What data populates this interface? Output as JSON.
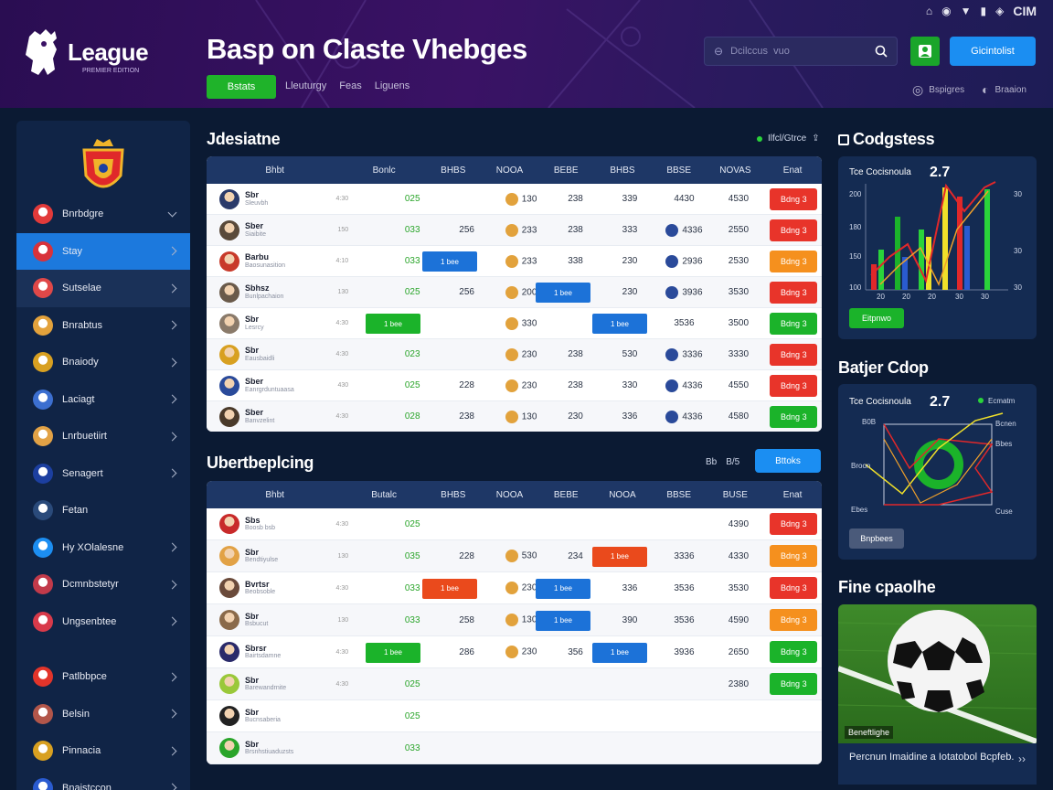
{
  "header": {
    "logo_text": "League",
    "logo_sub": "PREMIER EDITION",
    "title": "Basp on Claste Vhebges",
    "cta_label": "Bstats",
    "links": [
      "Lleuturgy",
      "Feas",
      "Liguens"
    ],
    "status_title": "CIM",
    "search_placeholder": "Dcilccus  vuo",
    "signup_label": "Gicintolist",
    "tool_1": "Bspigres",
    "tool_2": "Braaion"
  },
  "sidebar": {
    "items": [
      {
        "label": "Bnrbdgre",
        "icon_color": "#e23a3a",
        "chev": "down",
        "state": ""
      },
      {
        "label": "Stay",
        "icon_color": "#d8323a",
        "chev": "right",
        "state": "active"
      },
      {
        "label": "Sutselae",
        "icon_color": "#e04848",
        "chev": "right",
        "state": "alt"
      },
      {
        "label": "Bnrabtus",
        "icon_color": "#e3a23c",
        "chev": "right",
        "state": ""
      },
      {
        "label": "Bnaiody",
        "icon_color": "#d8a021",
        "chev": "right",
        "state": ""
      },
      {
        "label": "Laciagt",
        "icon_color": "#3c6fd0",
        "chev": "right",
        "state": ""
      },
      {
        "label": "Lnrbuetiirt",
        "icon_color": "#e2a246",
        "chev": "right",
        "state": ""
      },
      {
        "label": "Senagert",
        "icon_color": "#1c3fa0",
        "chev": "right",
        "state": ""
      },
      {
        "label": "Fetan",
        "icon_color": "#2a4a7a",
        "chev": "",
        "state": ""
      },
      {
        "label": "Hy XOlalesne",
        "icon_color": "#1c8ef2",
        "chev": "right",
        "state": ""
      },
      {
        "label": "Dcmnbstetyr",
        "icon_color": "#c23a4a",
        "chev": "right",
        "state": ""
      },
      {
        "label": "Ungsenbtee",
        "icon_color": "#d83a4a",
        "chev": "right",
        "state": ""
      },
      {
        "label": "Patlbbpce",
        "icon_color": "#e2342a",
        "chev": "right",
        "state": ""
      },
      {
        "label": "Belsin",
        "icon_color": "#b2564a",
        "chev": "right",
        "state": ""
      },
      {
        "label": "Pinnacia",
        "icon_color": "#d8a021",
        "chev": "right",
        "state": ""
      },
      {
        "label": "Bnaistccon",
        "icon_color": "#2a5bd0",
        "chev": "right",
        "state": ""
      }
    ]
  },
  "live_table": {
    "title": "Jdesiatne",
    "live_label": "Ilfcl/Gtrce",
    "headers": [
      "Bhbt",
      "Bonlc",
      "BHBS",
      "NOOA",
      "BEBE",
      "BHBS",
      "BBSE",
      "NOVAS",
      "Enat"
    ],
    "rows": [
      {
        "name": "Sbr",
        "sub": "Sleuvbh",
        "time": "4:30",
        "av": "#2a3a6a",
        "v": [
          "025",
          "",
          "130",
          "238",
          "339",
          "4430",
          "4530"
        ],
        "icons": [
          2
        ],
        "act": "Bdng 3",
        "act_color": "red"
      },
      {
        "name": "Sber",
        "sub": "Siaibite",
        "time": "150",
        "av": "#5a4a3a",
        "v": [
          "033",
          "256",
          "233",
          "238",
          "333",
          "4336",
          "2550"
        ],
        "icons": [
          2,
          5
        ],
        "act": "Bdng 3",
        "act_color": "red"
      },
      {
        "name": "Barbu",
        "sub": "Baosunasition",
        "time": "4:10",
        "av": "#c83a2a",
        "v": [
          "033",
          "",
          "233",
          "338",
          "230",
          "2936",
          "2530"
        ],
        "icons": [
          2,
          5
        ],
        "act": "Bdng 3",
        "act_color": "orange"
      },
      {
        "name": "Sbhsz",
        "sub": "Bunlpachaion",
        "time": "130",
        "av": "#6a5a4a",
        "v": [
          "025",
          "256",
          "200",
          "",
          "230",
          "3936",
          "3530"
        ],
        "icons": [
          2,
          5
        ],
        "act": "Bdng 3",
        "act_color": "red"
      },
      {
        "name": "Sbr",
        "sub": "Lesrcy",
        "time": "4:30",
        "av": "#8a7a6a",
        "v": [
          "",
          "",
          "330",
          "",
          "",
          "3536",
          "3500"
        ],
        "icons": [
          2
        ],
        "act": "Bdng 3",
        "act_color": "green"
      },
      {
        "name": "Sbr",
        "sub": "Eausbaidli",
        "time": "4:30",
        "av": "#d8a021",
        "v": [
          "023",
          "",
          "230",
          "238",
          "530",
          "3336",
          "3330"
        ],
        "icons": [
          2,
          5
        ],
        "act": "Bdng 3",
        "act_color": "red"
      },
      {
        "name": "Sber",
        "sub": "Eanrgrduntuaasa",
        "time": "430",
        "av": "#2a4a9a",
        "v": [
          "025",
          "228",
          "230",
          "238",
          "330",
          "4336",
          "4550"
        ],
        "icons": [
          2,
          5
        ],
        "act": "Bdng 3",
        "act_color": "red"
      },
      {
        "name": "Sber",
        "sub": "Banvzelint",
        "time": "4:30",
        "av": "#4a3a2a",
        "v": [
          "028",
          "238",
          "130",
          "230",
          "336",
          "4336",
          "4580"
        ],
        "icons": [
          2,
          5
        ],
        "act": "Bdng 3",
        "act_color": "green"
      }
    ],
    "pills": [
      {
        "label": "1 bee",
        "color": "blue",
        "row": 2,
        "col": 1
      },
      {
        "label": "1 bee",
        "color": "blue",
        "row": 3,
        "col": 3
      },
      {
        "label": "1 bee",
        "color": "green",
        "row": 4,
        "col": 0
      },
      {
        "label": "1 bee",
        "color": "blue",
        "row": 4,
        "col": 4
      }
    ]
  },
  "upcoming_table": {
    "title": "Ubertbeplcing",
    "filter_1": "Bb",
    "filter_2": "B/5",
    "signin_label": "Bttoks",
    "headers": [
      "Bhbt",
      "Butalc",
      "BHBS",
      "NOOA",
      "BEBE",
      "NOOA",
      "BBSE",
      "BUSE",
      "Enat"
    ],
    "rows": [
      {
        "name": "Sbs",
        "sub": "Boosb bsb",
        "time": "4:30",
        "av": "#c82a2a",
        "v": [
          "025",
          "",
          "",
          "",
          "",
          "",
          "4390"
        ],
        "icons": [],
        "act": "Bdng 3",
        "act_color": "red"
      },
      {
        "name": "Sbr",
        "sub": "Bendtiyulse",
        "time": "130",
        "av": "#e2a246",
        "v": [
          "035",
          "228",
          "530",
          "234",
          "",
          "3336",
          "4330"
        ],
        "icons": [
          2
        ],
        "act": "Bdng 3",
        "act_color": "orange"
      },
      {
        "name": "Bvrtsr",
        "sub": "Beobsoble",
        "time": "4:30",
        "av": "#6a4a3a",
        "v": [
          "033",
          "",
          "230",
          "",
          "336",
          "3536",
          "3530"
        ],
        "icons": [
          2
        ],
        "act": "Bdng 3",
        "act_color": "red"
      },
      {
        "name": "Sbr",
        "sub": "Bsbucut",
        "time": "130",
        "av": "#8a6a4a",
        "v": [
          "033",
          "258",
          "130",
          "",
          "390",
          "3536",
          "4590"
        ],
        "icons": [
          2
        ],
        "act": "Bdng 3",
        "act_color": "orange"
      },
      {
        "name": "Sbrsr",
        "sub": "Bairtsdamne",
        "time": "4:30",
        "av": "#2a2a6a",
        "v": [
          "",
          "286",
          "230",
          "356",
          "",
          "3936",
          "2650"
        ],
        "icons": [
          2
        ],
        "act": "Bdng 3",
        "act_color": "green"
      },
      {
        "name": "Sbr",
        "sub": "Barewandrnite",
        "time": "4:30",
        "av": "#9ac83a",
        "v": [
          "025",
          "",
          "",
          "",
          "",
          "",
          "2380"
        ],
        "icons": [],
        "act": "Bdng 3",
        "act_color": "green"
      },
      {
        "name": "Sbr",
        "sub": "Bucnsaberia",
        "time": "",
        "av": "#222222",
        "v": [
          "025",
          "",
          "",
          "",
          "",
          "",
          ""
        ],
        "icons": [],
        "act": "",
        "act_color": ""
      },
      {
        "name": "Sbr",
        "sub": "Brsnhstiuaduzsts",
        "time": "",
        "av": "#2aa52a",
        "v": [
          "033",
          "",
          "",
          "",
          "",
          "",
          ""
        ],
        "icons": [],
        "act": "",
        "act_color": ""
      }
    ],
    "pills": [
      {
        "label": "1 bee",
        "color": "red",
        "row": 1,
        "col": 4
      },
      {
        "label": "1 bee",
        "color": "blue",
        "row": 2,
        "col": 3
      },
      {
        "label": "1 bee",
        "color": "red",
        "row": 2,
        "col": 1
      },
      {
        "label": "1 bee",
        "color": "blue",
        "row": 3,
        "col": 3
      },
      {
        "label": "1 bee",
        "color": "green",
        "row": 4,
        "col": 0
      },
      {
        "label": "1 bee",
        "color": "blue",
        "row": 4,
        "col": 4
      }
    ]
  },
  "odds_panel": {
    "title": "Codgstess",
    "chart_title": "Tce Cocisnoula",
    "chart_value": "2.7",
    "button": "Eitpnwo",
    "y_ticks": [
      "200",
      "180",
      "150",
      "100"
    ],
    "x_ticks": [
      "20",
      "20",
      "20",
      "30",
      "30"
    ],
    "right_ticks": [
      "30",
      "30",
      "30"
    ]
  },
  "stats_panel": {
    "title": "Batjer Cdop",
    "chart_title": "Tce Cocisnoula",
    "chart_value": "2.7",
    "legend": "Ecmatm",
    "labels": [
      "B0B",
      "Broon",
      "Bcnen",
      "Bbes",
      "Ebes",
      "Cuse"
    ],
    "button": "Bnpbees"
  },
  "news": {
    "title": "Fine cpaolhe",
    "caption": "Beneftlighe",
    "text": "Percnun Imaidine a Iotatobol Bcpfeb."
  }
}
